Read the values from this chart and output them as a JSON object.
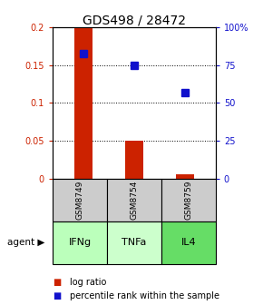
{
  "title": "GDS498 / 28472",
  "samples": [
    "GSM8749",
    "GSM8754",
    "GSM8759"
  ],
  "agents": [
    "IFNg",
    "TNFa",
    "IL4"
  ],
  "log_ratios": [
    0.2,
    0.05,
    0.005
  ],
  "percentile_ranks": [
    83,
    75,
    57
  ],
  "bar_color": "#cc2200",
  "dot_color": "#1111cc",
  "ylim_left": [
    0,
    0.2
  ],
  "ylim_right": [
    0,
    100
  ],
  "yticks_left": [
    0,
    0.05,
    0.1,
    0.15,
    0.2
  ],
  "yticks_right": [
    0,
    25,
    50,
    75,
    100
  ],
  "ytick_labels_left": [
    "0",
    "0.05",
    "0.1",
    "0.15",
    "0.2"
  ],
  "ytick_labels_right": [
    "0",
    "25",
    "50",
    "75",
    "100%"
  ],
  "sample_bg_color": "#cccccc",
  "agent_bg_colors": [
    "#bbffbb",
    "#ccffcc",
    "#66dd66"
  ],
  "bar_width": 0.35,
  "dot_size": 6,
  "title_fontsize": 10,
  "tick_fontsize": 7,
  "sample_fontsize": 6.5,
  "agent_fontsize": 8,
  "legend_fontsize": 7
}
